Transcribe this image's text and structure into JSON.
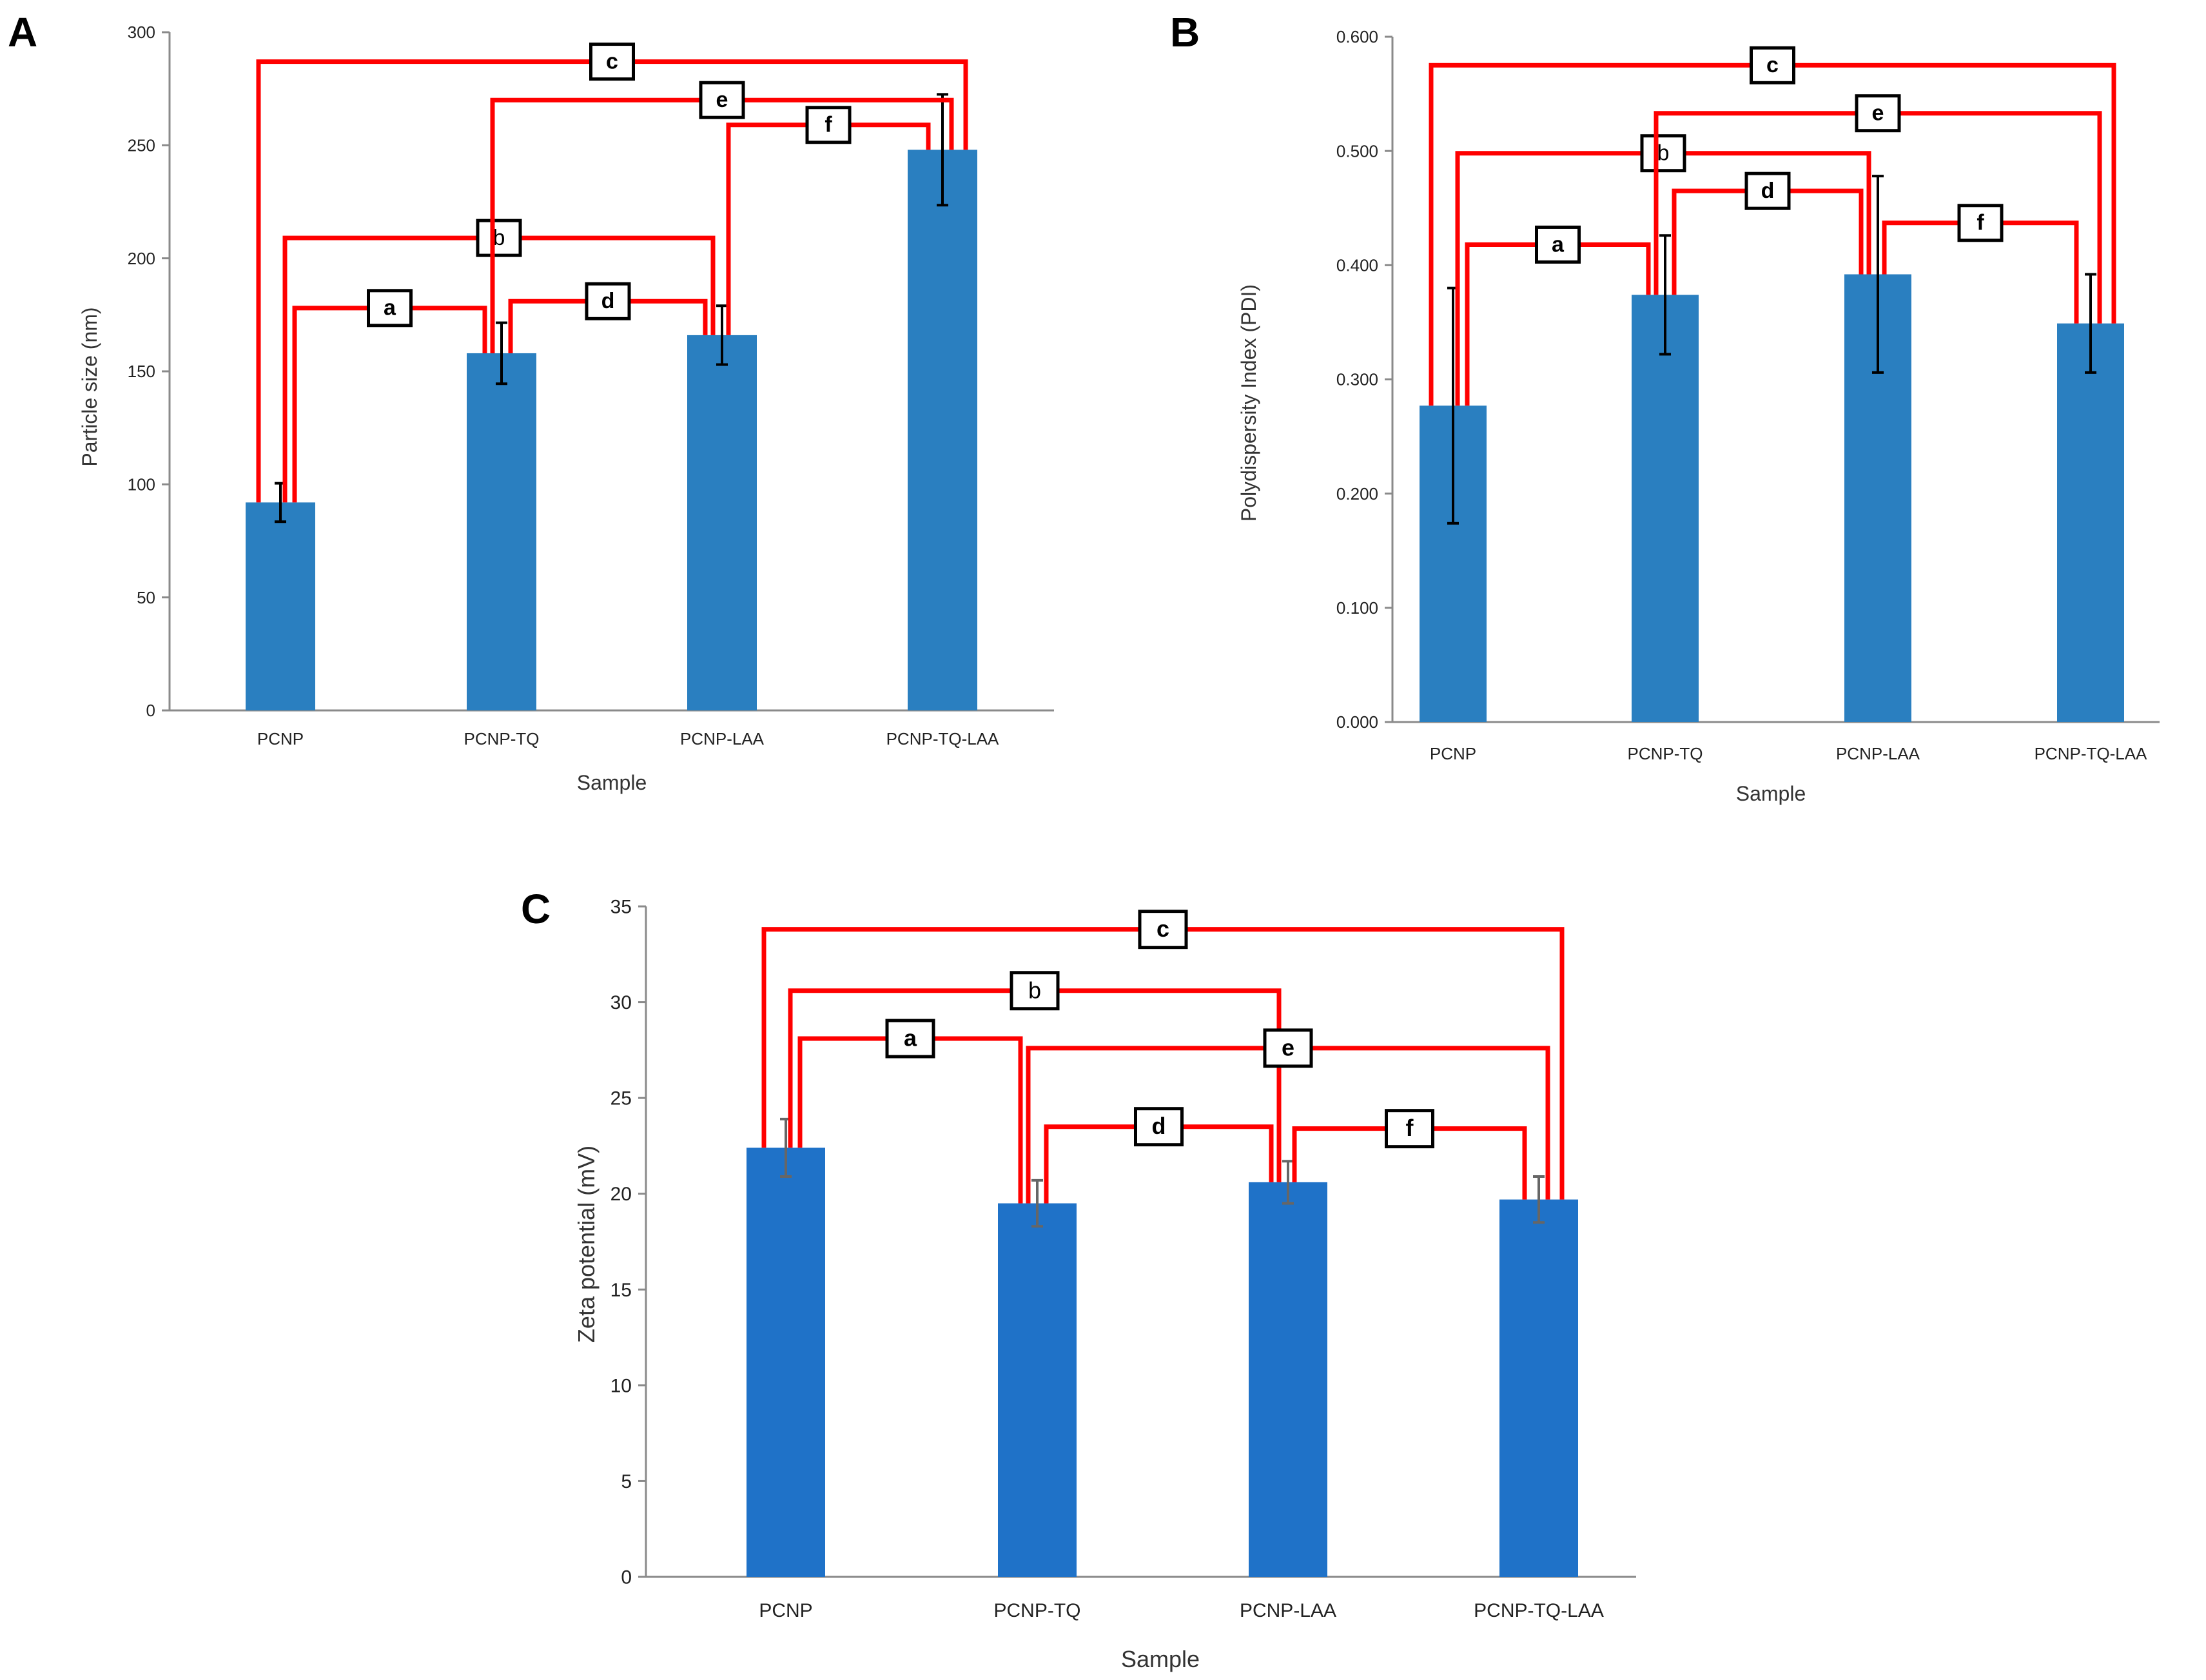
{
  "colors": {
    "barA": "#2a7fc0",
    "barB": "#2a7fc0",
    "barC": "#1f72c8",
    "bracket": "#ff0000",
    "errorA": "#000000",
    "errorB": "#000000",
    "errorC": "#666666"
  },
  "chart_data": [
    {
      "panel": "A",
      "type": "bar",
      "xlabel": "Sample",
      "ylabel": "Particle size (nm)",
      "ylim": [
        0,
        300
      ],
      "yticks": [
        "0",
        "50",
        "100",
        "150",
        "200",
        "250",
        "300"
      ],
      "ytick_values": [
        0,
        50,
        100,
        150,
        200,
        250,
        300
      ],
      "categories": [
        "PCNP",
        "PCNP-TQ",
        "PCNP-LAA",
        "PCNP-TQ-LAA"
      ],
      "values": [
        92,
        158,
        166,
        248
      ],
      "errors": [
        8.5,
        13.5,
        13,
        24.5
      ],
      "significance": [
        {
          "label": "a",
          "pair": [
            0,
            1
          ],
          "level": 178,
          "bold": true
        },
        {
          "label": "b",
          "pair": [
            0,
            2
          ],
          "level": 209,
          "bold": false
        },
        {
          "label": "c",
          "pair": [
            0,
            3
          ],
          "level": 287,
          "bold": true
        },
        {
          "label": "d",
          "pair": [
            1,
            2
          ],
          "level": 181,
          "bold": true
        },
        {
          "label": "e",
          "pair": [
            1,
            3
          ],
          "level": 270,
          "bold": true
        },
        {
          "label": "f",
          "pair": [
            2,
            3
          ],
          "level": 259,
          "bold": true
        }
      ]
    },
    {
      "panel": "B",
      "type": "bar",
      "xlabel": "Sample",
      "ylabel": "Polydispersity Index (PDI)",
      "ylim": [
        0,
        0.6
      ],
      "yticks": [
        "0.000",
        "0.100",
        "0.200",
        "0.300",
        "0.400",
        "0.500",
        "0.600"
      ],
      "ytick_values": [
        0,
        0.1,
        0.2,
        0.3,
        0.4,
        0.5,
        0.6
      ],
      "categories": [
        "PCNP",
        "PCNP-TQ",
        "PCNP-LAA",
        "PCNP-TQ-LAA"
      ],
      "values": [
        0.277,
        0.374,
        0.392,
        0.349
      ],
      "errors": [
        0.103,
        0.052,
        0.086,
        0.043
      ],
      "significance": [
        {
          "label": "a",
          "pair": [
            0,
            1
          ],
          "level": 0.418,
          "bold": true
        },
        {
          "label": "b",
          "pair": [
            0,
            2
          ],
          "level": 0.498,
          "bold": false
        },
        {
          "label": "c",
          "pair": [
            0,
            3
          ],
          "level": 0.575,
          "bold": true
        },
        {
          "label": "d",
          "pair": [
            1,
            2
          ],
          "level": 0.465,
          "bold": true
        },
        {
          "label": "e",
          "pair": [
            1,
            3
          ],
          "level": 0.533,
          "bold": true
        },
        {
          "label": "f",
          "pair": [
            2,
            3
          ],
          "level": 0.437,
          "bold": true
        }
      ]
    },
    {
      "panel": "C",
      "type": "bar",
      "xlabel": "Sample",
      "ylabel": "Zeta potential (mV)",
      "ylim": [
        0,
        35
      ],
      "yticks": [
        "0",
        "5",
        "10",
        "15",
        "20",
        "25",
        "30",
        "35"
      ],
      "ytick_values": [
        0,
        5,
        10,
        15,
        20,
        25,
        30,
        35
      ],
      "categories": [
        "PCNP",
        "PCNP-TQ",
        "PCNP-LAA",
        "PCNP-TQ-LAA"
      ],
      "values": [
        22.4,
        19.5,
        20.6,
        19.7
      ],
      "errors": [
        1.5,
        1.2,
        1.1,
        1.2
      ],
      "significance": [
        {
          "label": "a",
          "pair": [
            0,
            1
          ],
          "level": 28.1,
          "bold": true
        },
        {
          "label": "b",
          "pair": [
            0,
            2
          ],
          "level": 30.6,
          "bold": false
        },
        {
          "label": "c",
          "pair": [
            0,
            3
          ],
          "level": 33.8,
          "bold": true
        },
        {
          "label": "d",
          "pair": [
            1,
            2
          ],
          "level": 23.5,
          "bold": true
        },
        {
          "label": "e",
          "pair": [
            1,
            3
          ],
          "level": 27.6,
          "bold": true
        },
        {
          "label": "f",
          "pair": [
            2,
            3
          ],
          "level": 23.4,
          "bold": true
        }
      ]
    }
  ]
}
